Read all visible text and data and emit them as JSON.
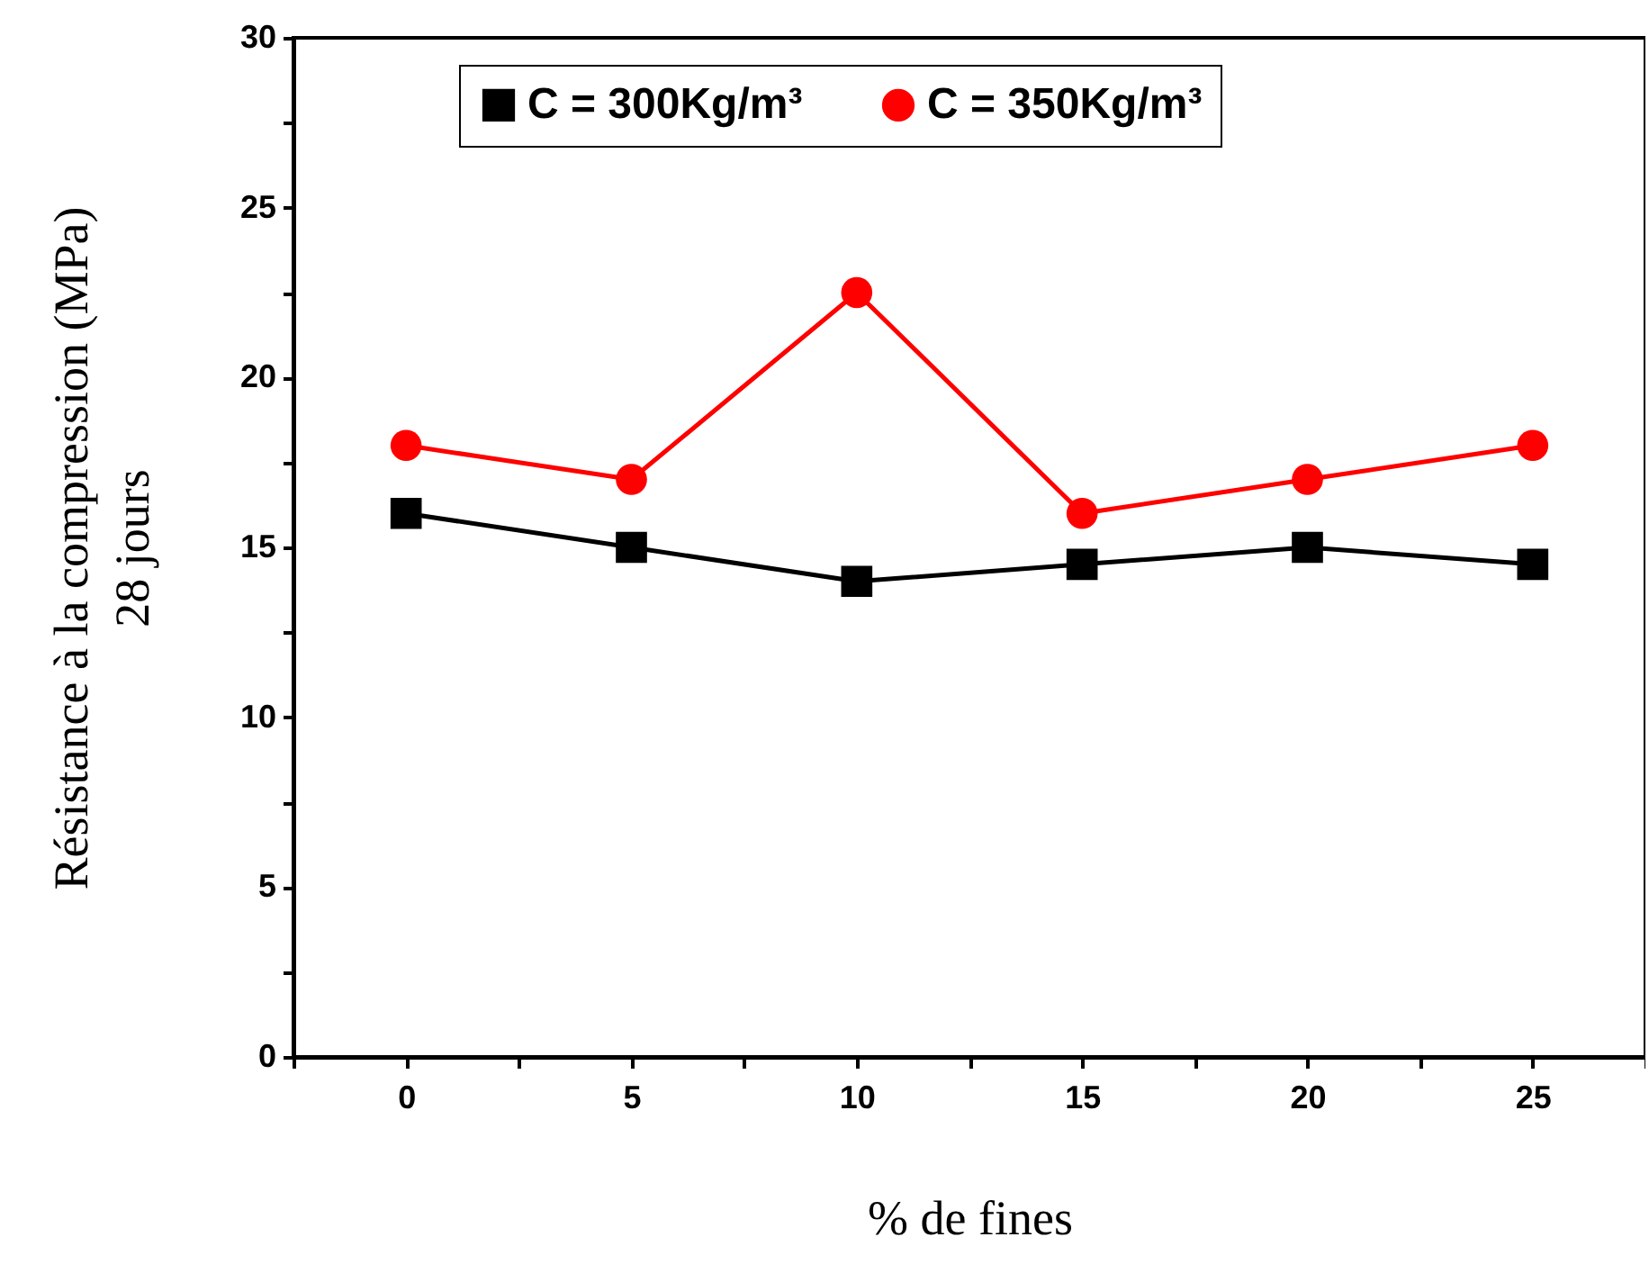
{
  "chart_data": {
    "type": "line",
    "xlabel": "% de fines",
    "ylabel": "Résistance à la compression (MPa)\n28 jours",
    "x": [
      0,
      5,
      10,
      15,
      20,
      25
    ],
    "series": [
      {
        "name": "C = 300Kg/m³",
        "color": "#000000",
        "marker": "square",
        "values": [
          16,
          15,
          14,
          14.5,
          15,
          14.5
        ]
      },
      {
        "name": "C = 350Kg/m³",
        "color": "#ff0000",
        "marker": "circle",
        "values": [
          18,
          17,
          22.5,
          16,
          17,
          18
        ]
      }
    ],
    "xlim": [
      -2.5,
      27.5
    ],
    "xticks": [
      {
        "value": -2.5,
        "label": null
      },
      0,
      {
        "value": 2.5,
        "label": null
      },
      5,
      {
        "value": 7.5,
        "label": null
      },
      10,
      {
        "value": 12.5,
        "label": null
      },
      15,
      {
        "value": 17.5,
        "label": null
      },
      20,
      {
        "value": 22.5,
        "label": null
      },
      25,
      {
        "value": 27.5,
        "label": null
      }
    ],
    "ylim": [
      0,
      30
    ],
    "yticks": [
      0,
      {
        "value": 2.5,
        "label": null
      },
      5,
      {
        "value": 7.5,
        "label": null
      },
      10,
      {
        "value": 12.5,
        "label": null
      },
      15,
      {
        "value": 17.5,
        "label": null
      },
      20,
      {
        "value": 22.5,
        "label": null
      },
      25,
      {
        "value": 27.5,
        "label": null
      },
      30
    ],
    "grid": false,
    "legend": "top",
    "line_style": "solid"
  }
}
